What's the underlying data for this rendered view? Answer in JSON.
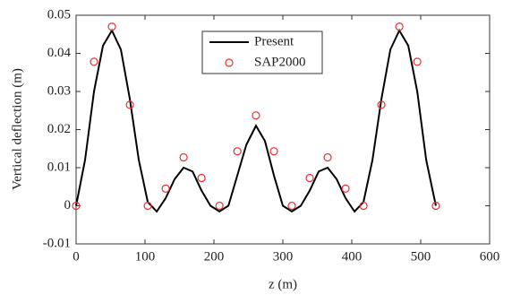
{
  "chart_data": {
    "type": "line",
    "xlabel": "z (m)",
    "ylabel": "Vertical deflection (m)",
    "xlim": [
      0,
      600
    ],
    "xticks": [
      0,
      100,
      200,
      300,
      400,
      500,
      600
    ],
    "ylim": [
      -0.01,
      0.05
    ],
    "yticks": [
      -0.01,
      0,
      0.01,
      0.02,
      0.03,
      0.04,
      0.05
    ],
    "legend": "top-center",
    "series": [
      {
        "name": "Present",
        "color": "#000000",
        "style": "line",
        "x": [
          0,
          13,
          26,
          39,
          52,
          65,
          78,
          91,
          104,
          117,
          130,
          143,
          156,
          169,
          182,
          195,
          208,
          221,
          234,
          247,
          261,
          274,
          287,
          300,
          313,
          326,
          339,
          352,
          365,
          378,
          391,
          404,
          417,
          430,
          443,
          456,
          469,
          482,
          495,
          508,
          522
        ],
        "values": [
          0,
          0.012,
          0.03,
          0.042,
          0.046,
          0.041,
          0.028,
          0.012,
          0.001,
          -0.0015,
          0.002,
          0.007,
          0.01,
          0.009,
          0.004,
          0,
          -0.0015,
          0,
          0.008,
          0.016,
          0.021,
          0.017,
          0.008,
          0,
          -0.0015,
          0,
          0.004,
          0.009,
          0.01,
          0.007,
          0.002,
          -0.0015,
          0.001,
          0.012,
          0.028,
          0.041,
          0.046,
          0.042,
          0.03,
          0.012,
          0
        ]
      },
      {
        "name": "SAP2000",
        "color": "#e8312f",
        "style": "marker",
        "x": [
          0,
          26,
          52,
          78,
          104,
          130,
          156,
          182,
          208,
          234,
          261,
          287,
          313,
          339,
          365,
          391,
          417,
          443,
          469,
          495,
          522
        ],
        "values": [
          0,
          0.0378,
          0.047,
          0.0265,
          0,
          0.0045,
          0.0127,
          0.0073,
          0,
          0.0143,
          0.0237,
          0.0143,
          0,
          0.0073,
          0.0127,
          0.0045,
          0,
          0.0265,
          0.047,
          0.0378,
          0
        ]
      }
    ]
  }
}
